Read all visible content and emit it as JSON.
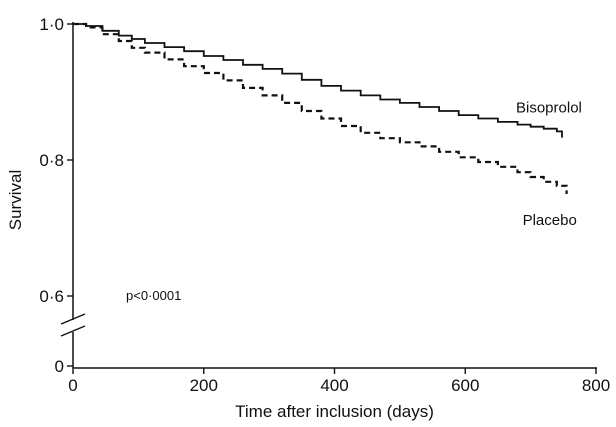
{
  "chart_data": {
    "type": "line",
    "style": "step",
    "title": "",
    "xlabel": "Time after inclusion (days)",
    "ylabel": "Survival",
    "xlim": [
      0,
      800
    ],
    "ylim_upper": [
      0.6,
      1.0
    ],
    "y_axis_break": "between 0 and 0.6",
    "x_ticks": [
      {
        "value": 0,
        "label": "0"
      },
      {
        "value": 200,
        "label": "200"
      },
      {
        "value": 400,
        "label": "400"
      },
      {
        "value": 600,
        "label": "600"
      },
      {
        "value": 800,
        "label": "800"
      }
    ],
    "y_ticks": [
      {
        "value": 0,
        "label": "0"
      },
      {
        "value": 0.6,
        "label": "0·6"
      },
      {
        "value": 0.8,
        "label": "0·8"
      },
      {
        "value": 1.0,
        "label": "1·0"
      }
    ],
    "grid": false,
    "annotation": "p<0·0001",
    "series": [
      {
        "name": "Bisoprolol",
        "line": "solid",
        "x": [
          0,
          20,
          45,
          70,
          90,
          110,
          140,
          170,
          200,
          230,
          260,
          290,
          320,
          350,
          380,
          410,
          440,
          470,
          500,
          530,
          560,
          590,
          620,
          650,
          680,
          700,
          720,
          740,
          748
        ],
        "y": [
          1.0,
          0.997,
          0.99,
          0.983,
          0.978,
          0.972,
          0.966,
          0.96,
          0.953,
          0.947,
          0.94,
          0.934,
          0.927,
          0.918,
          0.909,
          0.902,
          0.895,
          0.889,
          0.884,
          0.878,
          0.872,
          0.866,
          0.861,
          0.856,
          0.852,
          0.849,
          0.846,
          0.842,
          0.833
        ]
      },
      {
        "name": "Placebo",
        "line": "dashed",
        "x": [
          0,
          20,
          45,
          70,
          90,
          110,
          140,
          170,
          200,
          230,
          260,
          290,
          320,
          350,
          380,
          410,
          440,
          470,
          500,
          530,
          560,
          590,
          620,
          650,
          680,
          700,
          720,
          740,
          755
        ],
        "y": [
          1.0,
          0.995,
          0.985,
          0.975,
          0.965,
          0.958,
          0.948,
          0.938,
          0.928,
          0.917,
          0.906,
          0.895,
          0.884,
          0.872,
          0.861,
          0.85,
          0.84,
          0.832,
          0.826,
          0.82,
          0.812,
          0.804,
          0.797,
          0.79,
          0.782,
          0.775,
          0.768,
          0.762,
          0.75
        ]
      }
    ]
  }
}
